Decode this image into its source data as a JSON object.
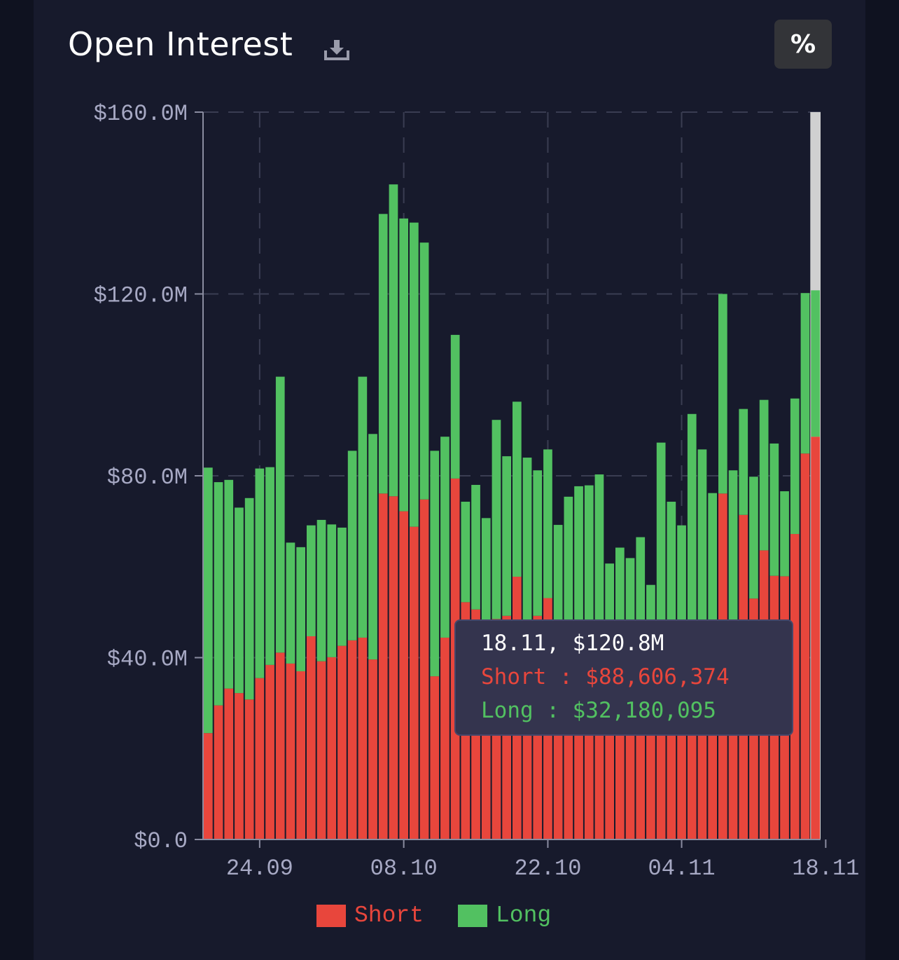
{
  "header": {
    "title": "Open Interest",
    "percent_label": "%"
  },
  "colors": {
    "short": "#e8463c",
    "long": "#52c161",
    "axis_text": "#a7a9c4",
    "grid": "#3a3d52",
    "highlight": "#d0d0d0"
  },
  "tooltip": {
    "header": "18.11, $120.8M",
    "short": "Short : $88,606,374",
    "long": "Long : $32,180,095"
  },
  "legend": {
    "short": "Short",
    "long": "Long"
  },
  "chart_data": {
    "type": "bar",
    "stacked": true,
    "ylim": [
      0,
      160
    ],
    "y_ticks": [
      0,
      40,
      80,
      120,
      160
    ],
    "y_tick_labels": [
      "$0.0",
      "$40.0M",
      "$80.0M",
      "$120.0M",
      "$160.0M"
    ],
    "x_tick_labels": [
      "24.09",
      "08.10",
      "22.10",
      "04.11",
      "18.11"
    ],
    "x_tick_bar_index": [
      5,
      19,
      33,
      46,
      60
    ],
    "grid": true,
    "legend_position": "bottom",
    "series": [
      {
        "name": "Short",
        "values": [
          23.4,
          29.5,
          33.2,
          32.2,
          30.8,
          35.5,
          38.4,
          41.1,
          38.7,
          37.0,
          44.7,
          39.2,
          40.1,
          42.6,
          43.8,
          44.4,
          39.6,
          76.1,
          75.5,
          72.2,
          68.8,
          74.8,
          35.9,
          44.4,
          79.4,
          52.2,
          50.6,
          46.6,
          48.5,
          49.2,
          57.8,
          45.9,
          49.2,
          53.1,
          38.6,
          45.7,
          46.1,
          44.0,
          37.3,
          42.3,
          38.1,
          41.0,
          42.2,
          40.4,
          37.0,
          35.5,
          40.9,
          41.8,
          46.2,
          45.6,
          76.1,
          46.6,
          71.4,
          53.0,
          63.6,
          58.0,
          57.9,
          67.2,
          84.9,
          88.6
        ]
      },
      {
        "name": "Long",
        "values": [
          58.4,
          49.1,
          45.9,
          40.8,
          44.3,
          46.1,
          43.5,
          60.7,
          26.6,
          27.3,
          24.4,
          31.1,
          29.2,
          26.0,
          41.7,
          57.4,
          49.6,
          61.5,
          68.6,
          64.4,
          66.9,
          56.5,
          49.6,
          44.2,
          31.6,
          22.1,
          27.4,
          24.1,
          43.8,
          35.1,
          38.5,
          38.1,
          32.0,
          32.7,
          30.6,
          29.7,
          31.6,
          33.9,
          43.0,
          18.4,
          26.1,
          20.9,
          24.3,
          15.6,
          50.3,
          38.8,
          28.2,
          51.8,
          39.6,
          30.6,
          43.9,
          34.6,
          23.3,
          26.8,
          33.1,
          29.1,
          18.7,
          29.8,
          35.3,
          32.2
        ]
      }
    ]
  }
}
